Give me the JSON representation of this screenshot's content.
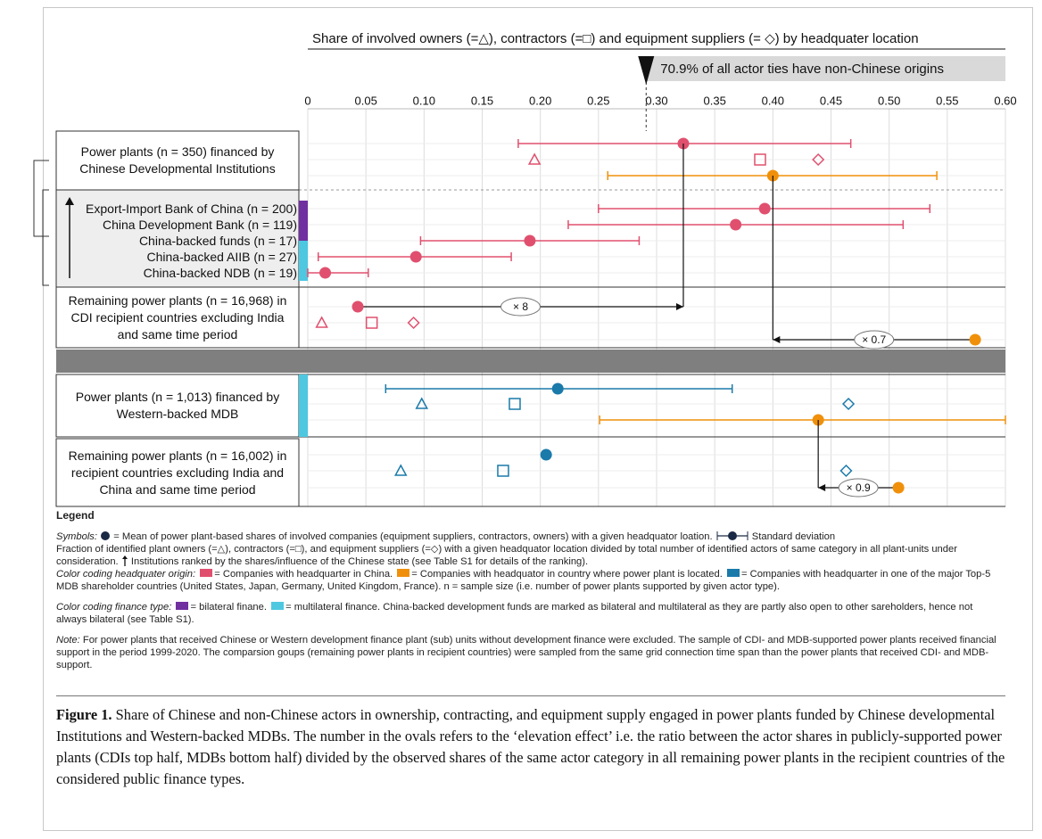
{
  "chart_data": {
    "type": "dot",
    "title": "Share of involved owners (=△), contractors (=□) and equipment suppliers (= ◇)  by headquater location",
    "banner": "70.9% of all actor ties have non-Chinese origins",
    "banner_marker": 0.291,
    "xlim": [
      0,
      0.6
    ],
    "xticks": [
      0,
      0.05,
      {
        "value": 0.1,
        "label": "0.10"
      },
      0.15,
      {
        "value": 0.2,
        "label": "0.20"
      },
      0.25,
      {
        "value": 0.3,
        "label": "0.30"
      },
      0.35,
      {
        "value": 0.4,
        "label": "0.40"
      },
      0.45,
      {
        "value": 0.5,
        "label": "0.50"
      },
      0.55,
      {
        "value": 0.6,
        "label": "0.60"
      }
    ],
    "grid": true,
    "rows": [
      {
        "label": "Power plants (n = 350) financed by Chinese Developmental Institutions",
        "marks": [
          {
            "color": "#e0506e",
            "mean": 0.323,
            "sd": [
              0.181,
              0.467
            ],
            "owners": 0.195,
            "contractors": 0.389,
            "suppliers": 0.439
          },
          {
            "color": "#f0900a",
            "mean": 0.4,
            "sd": [
              0.258,
              0.541
            ]
          }
        ]
      },
      {
        "items": [
          {
            "label": "Export-Import Bank of China (n = 200)",
            "finance": [
              "#7030a0"
            ],
            "color": "#e0506e",
            "mean": 0.393,
            "sd": [
              0.25,
              0.535
            ]
          },
          {
            "label": "China Development Bank (n = 119)",
            "finance": [
              "#7030a0"
            ],
            "color": "#e0506e",
            "mean": 0.368,
            "sd": [
              0.224,
              0.512
            ]
          },
          {
            "label": "China-backed funds (n = 17)",
            "finance": [
              "#7030a0",
              "#4dc8e0"
            ],
            "color": "#e0506e",
            "mean": 0.191,
            "sd": [
              0.097,
              0.285
            ]
          },
          {
            "label": "China-backed AIIB (n = 27)",
            "finance": [
              "#4dc8e0"
            ],
            "color": "#e0506e",
            "mean": 0.093,
            "sd": [
              0.009,
              0.175
            ]
          },
          {
            "label": "China-backed NDB (n = 19)",
            "finance": [
              "#4dc8e0"
            ],
            "color": "#e0506e",
            "mean": 0.015,
            "sd": [
              0.0,
              0.052
            ]
          }
        ]
      },
      {
        "label": "Remaining power plants (n = 16,968) in CDI recipient countries excluding India and same time period",
        "marks": [
          {
            "color": "#e0506e",
            "mean": 0.043,
            "owners": 0.012,
            "contractors": 0.055,
            "suppliers": 0.091,
            "ratio_label": "× 8"
          },
          {
            "color": "#f0900a",
            "mean": 0.574,
            "ratio_label": "× 0.7"
          }
        ]
      },
      {
        "label": "Power plants (n = 1,013) financed by Western-backed MDB",
        "finance": [
          "#4dc8e0"
        ],
        "marks": [
          {
            "color": "#1a7aaa",
            "mean": 0.215,
            "sd": [
              0.067,
              0.365
            ],
            "owners": 0.098,
            "contractors": 0.178,
            "suppliers": 0.465
          },
          {
            "color": "#f0900a",
            "mean": 0.439,
            "sd": [
              0.251,
              0.6
            ]
          }
        ]
      },
      {
        "label": "Remaining power plants (n = 16,002) in recipient countries excluding India and China and same time period",
        "marks": [
          {
            "color": "#1a7aaa",
            "mean": 0.205,
            "owners": 0.08,
            "contractors": 0.168,
            "suppliers": 0.463
          },
          {
            "color": "#f0900a",
            "mean": 0.508,
            "ratio_label": "× 0.9"
          }
        ]
      }
    ]
  },
  "legend": {
    "title": "Legend",
    "symbols": {
      "label": "Symbols:",
      "mean": "= Mean of power plant-based shares of involved companies (equipment suppliers, contractors, owners) with a given headquator loation.",
      "sd": "Standard deviation"
    },
    "fraction": {
      "text": "Fraction of identified plant owners (=△), contractors (=□), and equipment suppliers (=◇) with a given headquator location divided by total number of identified actors of same category in all plant-units under consideration.",
      "ranking": "Institutions ranked by the shares/influence of the Chinese state (see Table S1 for details of the ranking)."
    },
    "origin": {
      "label": "Color coding headquater origin:",
      "china": "= Companies with headquarter in China.",
      "local": "= Companies with headquator in country where power plant is located.",
      "mdb": "= Companies with headquarter in one of the major Top-5 MDB shareholder countries (United States, Japan, Germany, United Kingdom, France).",
      "n": "n = sample size (i.e. number of power plants supported by given actor type)."
    },
    "finance": {
      "label": "Color coding finance type:",
      "bilateral": "= bilateral finane.",
      "multilateral": "= multilateral finance. China-backed development funds are marked as bilateral and multilateral as they are partly also open to other sareholders, hence not always bilateral (see Table S1)."
    },
    "note": {
      "label": "Note:",
      "text": "For power plants that received Chinese or Western development finance plant (sub) units without development finance were excluded. The sample of CDI- and MDB-supported power plants received financial support in the period 1999-2020. The comparsion goups (remaining power plants in recipient countries) were sampled from the same grid connection time span than the power plants that received CDI- and MDB-support."
    }
  },
  "caption": {
    "label": "Figure 1.",
    "text": "Share of Chinese and non-Chinese actors in ownership, contracting, and equipment supply engaged in power plants funded by Chinese developmental Institutions and Western-backed MDBs. The number in the ovals refers to the ‘elevation effect’ i.e. the ratio between the actor shares in publicly-supported power plants (CDIs top half, MDBs bottom half) divided by the observed shares of the same actor category in all remaining power plants in the recipient countries of the considered public finance types."
  }
}
